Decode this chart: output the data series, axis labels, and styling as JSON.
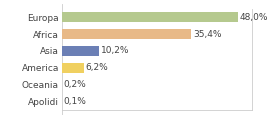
{
  "categories": [
    "Europa",
    "Africa",
    "Asia",
    "America",
    "Oceania",
    "Apolidi"
  ],
  "values": [
    48.0,
    35.4,
    10.2,
    6.2,
    0.2,
    0.1
  ],
  "labels": [
    "48,0%",
    "35,4%",
    "10,2%",
    "6,2%",
    "0,2%",
    "0,1%"
  ],
  "bar_colors": [
    "#b5c98e",
    "#e8b987",
    "#6b7fb5",
    "#f0d060",
    "#dddddd",
    "#dddddd"
  ],
  "background_color": "#ffffff",
  "xlim": [
    0,
    58
  ],
  "bar_height": 0.6,
  "label_fontsize": 6.5,
  "tick_fontsize": 6.5,
  "border_color": "#cccccc",
  "text_color": "#444444"
}
